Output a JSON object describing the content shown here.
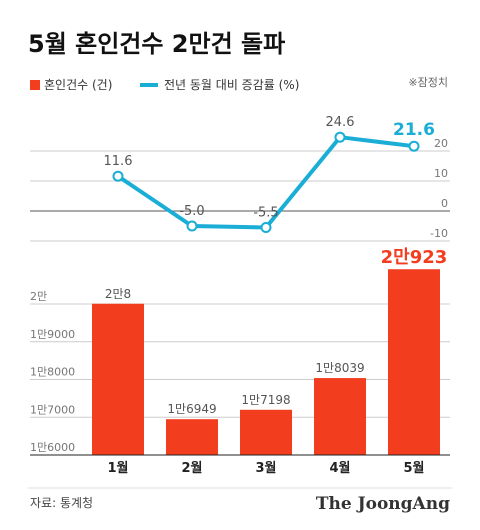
{
  "chart_data": {
    "type": "bar",
    "title": "5월 혼인건수 2만건 돌파",
    "annotation": "※잠정치",
    "source": "자료: 통계청",
    "credit": "The JoongAng",
    "categories": [
      "1월",
      "2월",
      "3월",
      "4월",
      "5월"
    ],
    "series": [
      {
        "name": "혼인건수 (건)",
        "color": "#f23d1f",
        "type": "bar",
        "values": [
          20008,
          16949,
          17198,
          18039,
          20923
        ],
        "value_labels": [
          "2만8",
          "1만6949",
          "1만7198",
          "1만8039",
          "2만923"
        ]
      },
      {
        "name": "전년 동월 대비 증감률 (%)",
        "color": "#1aaed6",
        "type": "line",
        "axis": "y2",
        "values": [
          11.6,
          -5.0,
          -5.5,
          24.6,
          21.6
        ],
        "value_labels": [
          "11.6",
          "-5.0",
          "-5.5",
          "24.6",
          "21.6"
        ]
      }
    ],
    "ylim": [
      16000,
      21300
    ],
    "yticks": [
      {
        "value": 16000,
        "label": "1만6000"
      },
      {
        "value": 17000,
        "label": "1만7000"
      },
      {
        "value": 18000,
        "label": "1만8000"
      },
      {
        "value": 19000,
        "label": "1만9000"
      },
      {
        "value": 20000,
        "label": "2만"
      }
    ],
    "y2lim": [
      -13,
      35
    ],
    "y2ticks": [
      -10,
      0,
      10,
      20
    ],
    "grid": true
  }
}
